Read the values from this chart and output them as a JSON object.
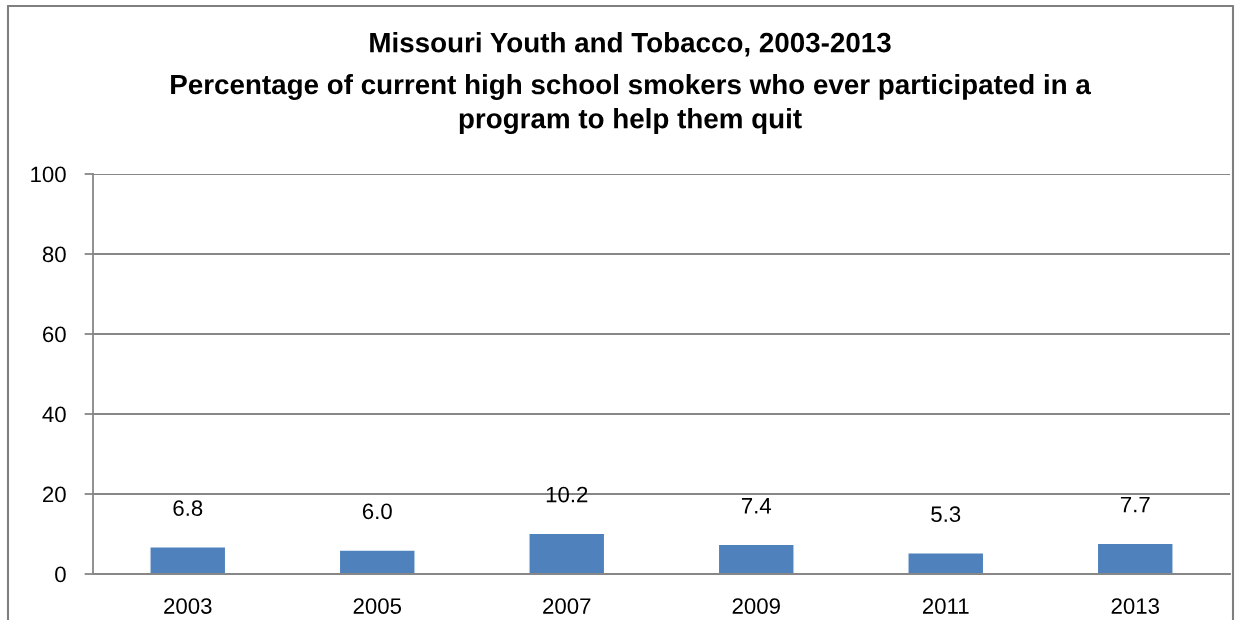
{
  "chart_data": {
    "type": "bar",
    "title": "Missouri Youth and Tobacco, 2003-2013",
    "subtitle": "Percentage of current high school smokers who ever participated in a\nprogram to help them quit",
    "categories": [
      "2003",
      "2005",
      "2007",
      "2009",
      "2011",
      "2013"
    ],
    "values": [
      6.8,
      6.0,
      10.2,
      7.4,
      5.3,
      7.7
    ],
    "value_labels": [
      "6.8",
      "6.0",
      "10.2",
      "7.4",
      "5.3",
      "7.7"
    ],
    "color": "#4f81bd",
    "ylim": [
      0,
      100
    ],
    "yticks": [
      0,
      20,
      40,
      60,
      80,
      100
    ],
    "grid": "y"
  }
}
